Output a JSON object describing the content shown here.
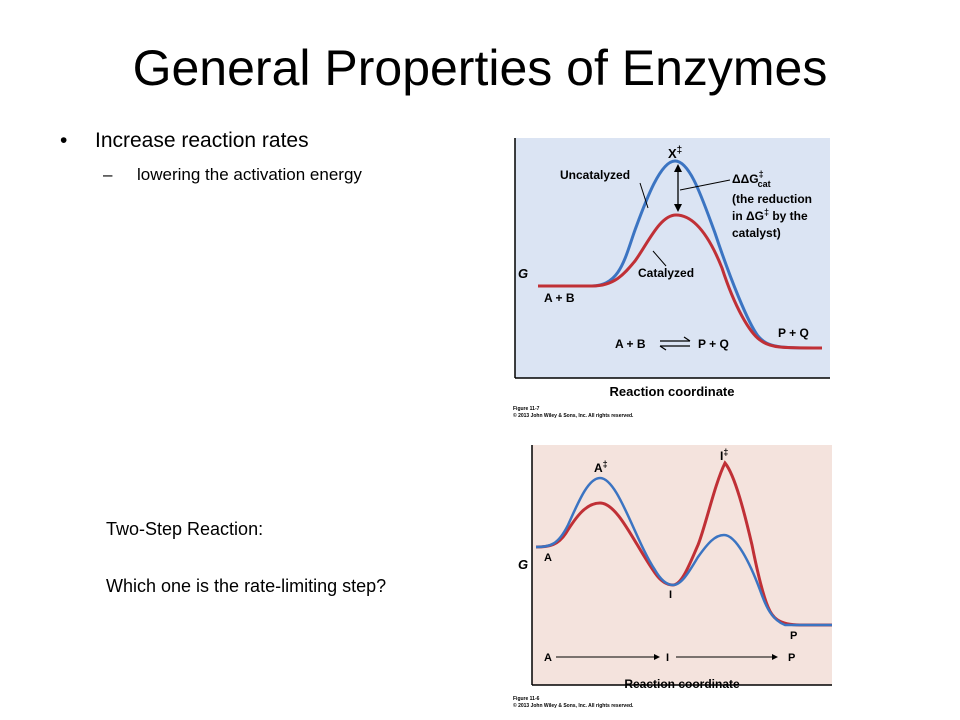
{
  "slide": {
    "title": "General Properties of Enzymes",
    "bullet": "Increase reaction rates",
    "bullet_marker": "•",
    "sub_marker": "–",
    "sub_bullet": "lowering the activation energy",
    "two_step_label": "Two-Step Reaction:",
    "question": "Which one is the rate-limiting step?"
  },
  "figure_top": {
    "colors": {
      "background": "#dbe4f3",
      "uncatalyzed": "#3b74c2",
      "catalyzed": "#c03036"
    },
    "y_label": "G",
    "x_label": "Reaction coordinate",
    "peak_label": "X",
    "peak_sup": "‡",
    "uncatalyzed_label": "Uncatalyzed",
    "catalyzed_label": "Catalyzed",
    "ddg_line1_prefix": "ΔΔG",
    "ddg_sup": "‡",
    "ddg_sub": "cat",
    "ddg_line2": "(the reduction",
    "ddg_line3_prefix": "in ΔG",
    "ddg_line3_suffix": " by the",
    "ddg_line4": "catalyst)",
    "reactants_label": "A + B",
    "products_label": "P + Q",
    "eq_left": "A + B",
    "eq_right": "P + Q",
    "caption_1": "Figure 11-7",
    "caption_2": "© 2013 John Wiley & Sons, Inc. All rights reserved."
  },
  "figure_bottom": {
    "colors": {
      "background": "#f4e3dd",
      "curve_red": "#c03036",
      "curve_blue": "#3b74c2"
    },
    "y_label": "G",
    "x_label": "Reaction coordinate",
    "peak1_label": "A",
    "peak1_sup": "‡",
    "peak2_label": "I",
    "peak2_sup": "‡",
    "start_label": "A",
    "mid_label": "I",
    "end_label": "P",
    "axis_a": "A",
    "axis_i": "I",
    "axis_p": "P",
    "caption_1": "Figure 11-6",
    "caption_2": "© 2013 John Wiley & Sons, Inc. All rights reserved."
  }
}
